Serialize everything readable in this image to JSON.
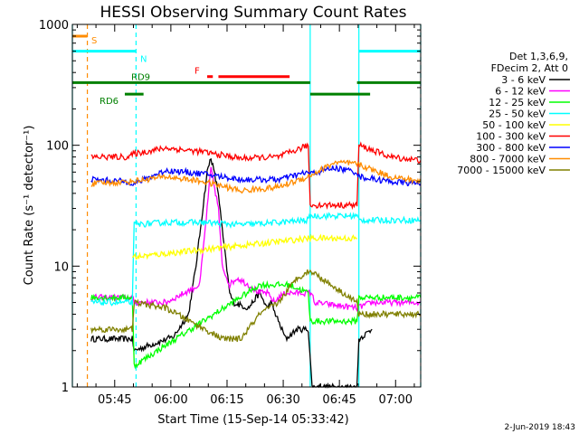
{
  "chart_data": {
    "type": "line",
    "title": "HESSI Observing Summary Count Rates",
    "xlabel": "Start Time (15-Sep-14 05:33:42)",
    "ylabel": "Count Rate (s⁻¹ detector⁻¹)",
    "yscale": "log",
    "ylim": [
      1,
      1000
    ],
    "xlim_minutes": [
      0,
      93
    ],
    "x_ticks": [
      "05:45",
      "06:00",
      "06:15",
      "06:30",
      "06:45",
      "07:00"
    ],
    "y_ticks": [
      "1",
      "10",
      "100",
      "1000"
    ],
    "legend": {
      "header": [
        "Det 1,3,6,9,",
        "FDecim 2, Att 0"
      ],
      "placement": "right"
    },
    "series": [
      {
        "name": "3 - 6 keV",
        "color": "#000000",
        "x": [
          5,
          16,
          16.5,
          27,
          31,
          33,
          36,
          37,
          39,
          40,
          42,
          43,
          47,
          50,
          52,
          53,
          55,
          57,
          60,
          63,
          64,
          76,
          76.5,
          80
        ],
        "y": [
          2.5,
          2.5,
          2.0,
          2.6,
          4,
          10,
          60,
          80,
          40,
          20,
          6,
          5,
          4.5,
          6,
          4.5,
          5,
          3.5,
          2.5,
          3,
          3,
          1,
          1,
          2.5,
          3
        ]
      },
      {
        "name": "6 - 12 keV",
        "color": "#ff00ff",
        "x": [
          5,
          16,
          16.5,
          25,
          34,
          36,
          37,
          39,
          40,
          42,
          44,
          47,
          50,
          52,
          54,
          55,
          57,
          64,
          64.5,
          76,
          80,
          93
        ],
        "y": [
          5.5,
          5.5,
          5,
          5,
          7,
          30,
          65,
          30,
          10,
          7,
          8,
          7,
          6,
          6,
          5,
          5.5,
          6,
          6,
          5,
          4.5,
          5,
          5
        ]
      },
      {
        "name": "12 - 25 keV",
        "color": "#00ff00",
        "x": [
          5,
          16,
          16.5,
          50,
          58,
          63,
          63.5,
          76,
          76.5,
          93
        ],
        "y": [
          5.5,
          5.5,
          1.5,
          7,
          7,
          6,
          3.5,
          3.5,
          5.5,
          5.5
        ]
      },
      {
        "name": "25 - 50 keV",
        "color": "#00ffff",
        "x": [
          5,
          16,
          16.5,
          25,
          35,
          45,
          55,
          63,
          63.5,
          76,
          76.5,
          93
        ],
        "y": [
          5,
          5,
          22,
          23,
          23,
          22,
          23,
          24,
          26,
          26,
          24,
          24
        ]
      },
      {
        "name": "50 - 100 keV",
        "color": "#ffff00",
        "x": [
          16,
          17.5,
          63.5,
          76
        ],
        "y": [
          12,
          12,
          17,
          17
        ]
      },
      {
        "name": "100 - 300 keV",
        "color": "#ff0000",
        "x": [
          5,
          15,
          16.5,
          25,
          35,
          45,
          55,
          63,
          63.5,
          76,
          76.5,
          85,
          93
        ],
        "y": [
          80,
          80,
          85,
          95,
          88,
          78,
          80,
          100,
          32,
          32,
          100,
          80,
          75
        ]
      },
      {
        "name": "300 - 800 keV",
        "color": "#0000ff",
        "x": [
          5,
          15,
          16.5,
          25,
          35,
          45,
          55,
          63,
          63.5,
          70,
          76,
          76.5,
          85,
          93
        ],
        "y": [
          52,
          50,
          48,
          62,
          58,
          52,
          52,
          60,
          58,
          65,
          60,
          55,
          50,
          48
        ]
      },
      {
        "name": "800 - 7000 keV",
        "color": "#ff8c00",
        "x": [
          5,
          15,
          25,
          35,
          45,
          55,
          63,
          70,
          76,
          85,
          93
        ],
        "y": [
          48,
          50,
          55,
          50,
          42,
          45,
          55,
          72,
          70,
          55,
          50
        ]
      },
      {
        "name": "7000 - 15000 keV",
        "color": "#808000",
        "x": [
          5,
          16,
          16.5,
          25,
          40,
          45,
          50,
          55,
          60,
          63,
          64,
          76,
          76.5,
          93
        ],
        "y": [
          3,
          3,
          5,
          4.5,
          2.5,
          2.5,
          4,
          5,
          8,
          9,
          9,
          5,
          4,
          4
        ]
      }
    ],
    "flag_bars": [
      {
        "label": "S",
        "color": "#ff8c00",
        "y": 800,
        "segments": [
          [
            0,
            4
          ]
        ]
      },
      {
        "label": "N",
        "color": "#00ffff",
        "y": 600,
        "segments": [
          [
            0,
            17
          ],
          [
            76.5,
            93
          ]
        ]
      },
      {
        "label": "F",
        "color": "#ff0000",
        "y": 370,
        "segments": [
          [
            36,
            37.5
          ],
          [
            39,
            58
          ]
        ]
      },
      {
        "label": "RD9",
        "color": "#008000",
        "y": 330,
        "segments": [
          [
            0,
            63.5
          ],
          [
            76,
            93
          ]
        ]
      },
      {
        "label": "RD6",
        "color": "#008000",
        "y": 265,
        "segments": [
          [
            14,
            19
          ],
          [
            63.5,
            79.5
          ]
        ]
      }
    ],
    "vertical_lines": [
      {
        "x": 0,
        "color": "#00ffff",
        "style": "solid"
      },
      {
        "x": 4,
        "color": "#ff8c00",
        "style": "dashed"
      },
      {
        "x": 17,
        "color": "#00ffff",
        "style": "dashed"
      },
      {
        "x": 63.5,
        "color": "#00ffff",
        "style": "solid"
      },
      {
        "x": 76.5,
        "color": "#00ffff",
        "style": "solid"
      },
      {
        "x": 93,
        "color": "#00ffff",
        "style": "dashed"
      }
    ],
    "grid": false
  },
  "footer": {
    "date_stamp": "2-Jun-2019 18:43"
  }
}
